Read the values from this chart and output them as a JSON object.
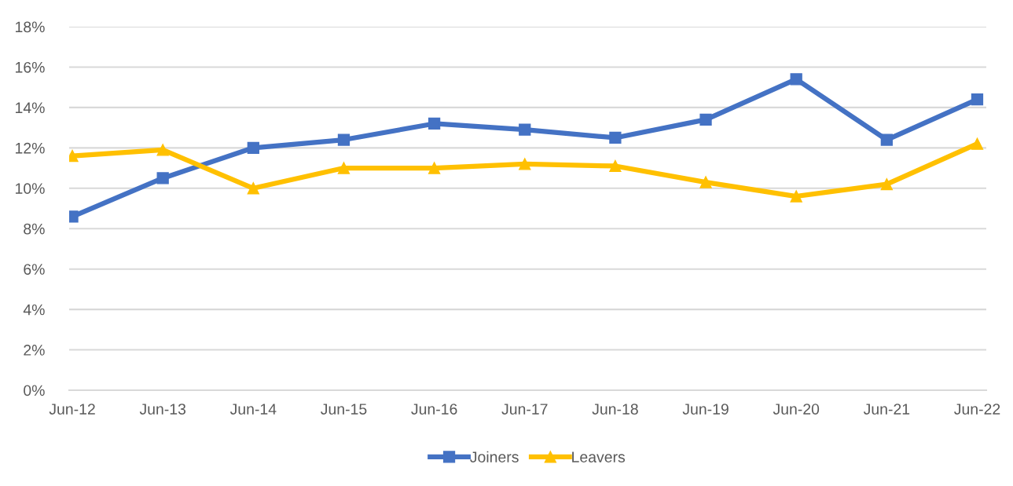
{
  "chart_data": {
    "type": "line",
    "categories": [
      "Jun-12",
      "Jun-13",
      "Jun-14",
      "Jun-15",
      "Jun-16",
      "Jun-17",
      "Jun-18",
      "Jun-19",
      "Jun-20",
      "Jun-21",
      "Jun-22"
    ],
    "series": [
      {
        "name": "Joiners",
        "color": "#4472c4",
        "marker": "square",
        "values": [
          8.6,
          10.5,
          12.0,
          12.4,
          13.2,
          12.9,
          12.5,
          13.4,
          15.4,
          12.4,
          14.4
        ]
      },
      {
        "name": "Leavers",
        "color": "#ffc000",
        "marker": "triangle",
        "values": [
          11.6,
          11.9,
          10.0,
          11.0,
          11.0,
          11.2,
          11.1,
          10.3,
          9.6,
          10.2,
          12.2
        ]
      }
    ],
    "ylim": [
      0,
      18
    ],
    "yticks": [
      {
        "value": 0,
        "label": "0%"
      },
      {
        "value": 2,
        "label": "2%"
      },
      {
        "value": 4,
        "label": "4%"
      },
      {
        "value": 6,
        "label": "6%"
      },
      {
        "value": 8,
        "label": "8%"
      },
      {
        "value": 10,
        "label": "10%"
      },
      {
        "value": 12,
        "label": "12%"
      },
      {
        "value": 14,
        "label": "14%"
      },
      {
        "value": 16,
        "label": "16%"
      },
      {
        "value": 18,
        "label": "18%"
      }
    ],
    "grid": "y",
    "legend": "bottom",
    "line_style": "solid"
  }
}
